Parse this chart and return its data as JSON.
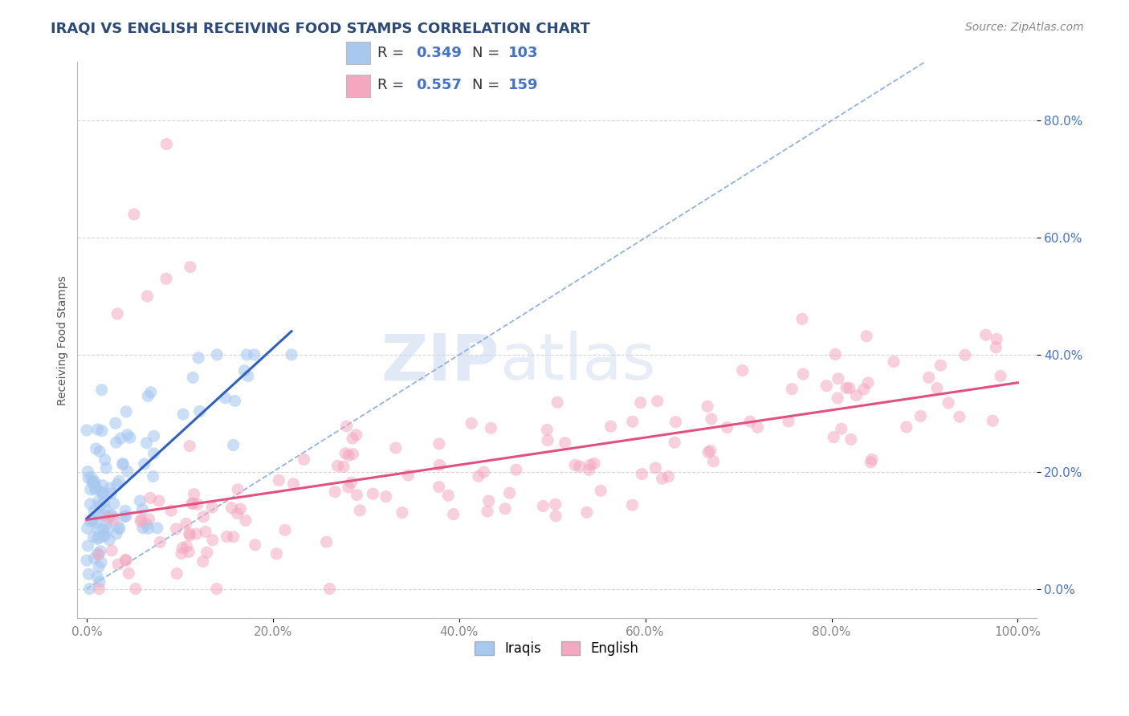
{
  "title": "IRAQI VS ENGLISH RECEIVING FOOD STAMPS CORRELATION CHART",
  "source": "Source: ZipAtlas.com",
  "ylabel": "Receiving Food Stamps",
  "xlim": [
    -0.01,
    1.02
  ],
  "ylim": [
    -0.05,
    0.9
  ],
  "x_ticks": [
    0.0,
    0.2,
    0.4,
    0.6,
    0.8,
    1.0
  ],
  "x_tick_labels": [
    "0.0%",
    "20.0%",
    "40.0%",
    "60.0%",
    "80.0%",
    "100.0%"
  ],
  "y_ticks": [
    0.0,
    0.2,
    0.4,
    0.6,
    0.8
  ],
  "y_tick_labels": [
    "0.0%",
    "20.0%",
    "40.0%",
    "60.0%",
    "80.0%"
  ],
  "iraqi_color": "#a8c8f0",
  "english_color": "#f4a8c0",
  "iraqi_R": 0.349,
  "iraqi_N": 103,
  "english_R": 0.557,
  "english_N": 159,
  "trendline_color_iraqi": "#3060c0",
  "trendline_color_english": "#e05080",
  "diagonal_color": "#88aadd",
  "watermark_zip": "ZIP",
  "watermark_atlas": "atlas",
  "background_color": "#ffffff",
  "grid_color": "#cccccc",
  "title_color": "#2e4a7a",
  "tick_color_y": "#4472c4",
  "tick_color_x": "#888888",
  "legend_label_iraqi": "Iraqis",
  "legend_label_english": "English"
}
